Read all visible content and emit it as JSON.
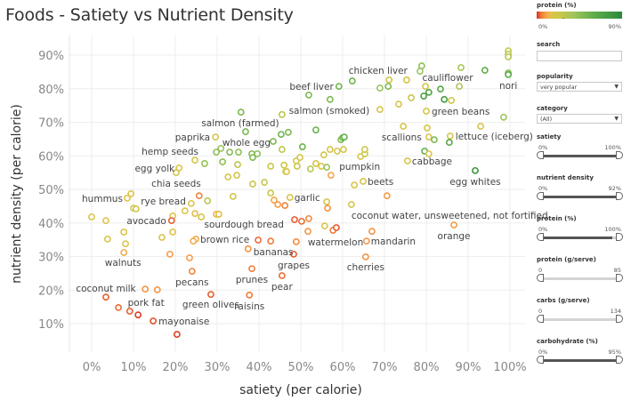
{
  "title": "Foods - Satiety vs Nutrient Density",
  "chart_data": {
    "type": "scatter",
    "title": "Foods - Satiety vs Nutrient Density",
    "xlabel": "satiety (per calorie)",
    "ylabel": "nutrient density (per calorie)",
    "xlim": [
      -5,
      104
    ],
    "ylim": [
      2,
      96
    ],
    "x_ticks": [
      "0%",
      "10%",
      "20%",
      "30%",
      "40%",
      "50%",
      "60%",
      "70%",
      "80%",
      "90%",
      "100%"
    ],
    "y_ticks": [
      "10%",
      "20%",
      "30%",
      "40%",
      "50%",
      "60%",
      "70%",
      "80%",
      "90%"
    ],
    "grid": true,
    "marker": "open circle",
    "color_by": "protein (%)",
    "points": [
      {
        "label": "hummus",
        "x": 8.5,
        "y": 47.4,
        "protein": 16
      },
      {
        "x": 9.4,
        "y": 48.7,
        "protein": 16
      },
      {
        "label": "rye bread",
        "x": 23.8,
        "y": 45.8,
        "protein": 16
      },
      {
        "x": 25.7,
        "y": 48.1,
        "protein": 6
      },
      {
        "x": 27.7,
        "y": 46.6,
        "protein": 28
      },
      {
        "x": 33.8,
        "y": 47.9,
        "protein": 22
      },
      {
        "x": 43.6,
        "y": 46.8,
        "protein": 10
      },
      {
        "x": 44.5,
        "y": 45.5,
        "protein": 9
      },
      {
        "x": 46.2,
        "y": 45.2,
        "protein": 6
      },
      {
        "label": "garlic",
        "x": 47.4,
        "y": 47.6,
        "protein": 16
      },
      {
        "x": 42.8,
        "y": 48.9,
        "protein": 24
      },
      {
        "x": 10,
        "y": 44.4,
        "protein": 20
      },
      {
        "x": 10.6,
        "y": 44.2,
        "protein": 22
      },
      {
        "x": 22.3,
        "y": 43.6,
        "protein": 16
      },
      {
        "x": 24.7,
        "y": 42.8,
        "protein": 14
      },
      {
        "x": 26.2,
        "y": 41.8,
        "protein": 20
      },
      {
        "x": 29.8,
        "y": 42.6,
        "protein": 14
      },
      {
        "x": 30.4,
        "y": 42.6,
        "protein": 14
      },
      {
        "x": 0,
        "y": 41.8,
        "protein": 16
      },
      {
        "x": 3.4,
        "y": 40.7,
        "protein": 16
      },
      {
        "x": 19.4,
        "y": 42.1,
        "protein": 16
      },
      {
        "label": "avocado",
        "x": 19.1,
        "y": 40.7,
        "protein": 3
      },
      {
        "x": 7.7,
        "y": 37.3,
        "protein": 16
      },
      {
        "x": 3.8,
        "y": 35.2,
        "protein": 18
      },
      {
        "x": 8.1,
        "y": 33.8,
        "protein": 16
      },
      {
        "label": "walnuts",
        "x": 7.7,
        "y": 31.2,
        "protein": 11
      },
      {
        "x": 16.8,
        "y": 35.7,
        "protein": 16
      },
      {
        "x": 19.4,
        "y": 37.3,
        "protein": 16
      },
      {
        "label": "brown rice",
        "x": 24.9,
        "y": 35.2,
        "protein": 11
      },
      {
        "x": 24.3,
        "y": 34.6,
        "protein": 11
      },
      {
        "x": 18.7,
        "y": 30.7,
        "protein": 9
      },
      {
        "x": 23.4,
        "y": 29.6,
        "protein": 9
      },
      {
        "label": "pecans",
        "x": 24,
        "y": 25.6,
        "protein": 6
      },
      {
        "x": 39.8,
        "y": 34.9,
        "protein": 4
      },
      {
        "x": 42.8,
        "y": 34.6,
        "protein": 5
      },
      {
        "label": "bananas",
        "x": 37.4,
        "y": 32.3,
        "protein": 8
      },
      {
        "label": "sourdough bread",
        "x": 48.5,
        "y": 41,
        "protein": 3
      },
      {
        "x": 50.2,
        "y": 40.5,
        "protein": 4
      },
      {
        "label": "watermelon",
        "x": 48.9,
        "y": 34.4,
        "protein": 7
      },
      {
        "label": "grapes",
        "x": 48.3,
        "y": 30.7,
        "protein": 3
      },
      {
        "label": "prunes",
        "x": 38.3,
        "y": 26.4,
        "protein": 5
      },
      {
        "label": "pear",
        "x": 45.5,
        "y": 24.3,
        "protein": 4
      },
      {
        "x": 12.8,
        "y": 20.3,
        "protein": 8
      },
      {
        "x": 15.7,
        "y": 20.1,
        "protein": 8
      },
      {
        "label": "coconut milk",
        "x": 3.4,
        "y": 17.9,
        "protein": 3
      },
      {
        "x": 6.4,
        "y": 14.8,
        "protein": 4
      },
      {
        "x": 9.1,
        "y": 13.7,
        "protein": 3
      },
      {
        "label": "pork fat",
        "x": 11.1,
        "y": 12.6,
        "protein": 1
      },
      {
        "label": "mayonaise",
        "x": 14.7,
        "y": 10.8,
        "protein": 2
      },
      {
        "x": 20.4,
        "y": 6.8,
        "protein": 1
      },
      {
        "label": "green olives",
        "x": 28.5,
        "y": 18.7,
        "protein": 3
      },
      {
        "label": "raisins",
        "x": 37.7,
        "y": 18.5,
        "protein": 5
      },
      {
        "x": 35.7,
        "y": 73,
        "protein": 50
      },
      {
        "x": 45.5,
        "y": 72.3,
        "protein": 28
      },
      {
        "label": "salmon (farmed)",
        "x": 36.8,
        "y": 67.2,
        "protein": 50
      },
      {
        "label": "paprika",
        "x": 29.6,
        "y": 65.6,
        "protein": 18
      },
      {
        "x": 45.3,
        "y": 66.4,
        "protein": 55
      },
      {
        "x": 47,
        "y": 67,
        "protein": 50
      },
      {
        "label": "whole egg",
        "x": 43.4,
        "y": 64.3,
        "protein": 50
      },
      {
        "x": 30.9,
        "y": 62.2,
        "protein": 40
      },
      {
        "x": 29.8,
        "y": 61.1,
        "protein": 45
      },
      {
        "x": 33,
        "y": 61.1,
        "protein": 48
      },
      {
        "x": 35.1,
        "y": 61.1,
        "protein": 45
      },
      {
        "x": 38.3,
        "y": 60.6,
        "protein": 48
      },
      {
        "x": 39.6,
        "y": 60.6,
        "protein": 45
      },
      {
        "x": 38.5,
        "y": 59.5,
        "protein": 50
      },
      {
        "x": 45.5,
        "y": 61.9,
        "protein": 28
      },
      {
        "label": "hemp seeds",
        "x": 24.7,
        "y": 58.7,
        "protein": 20
      },
      {
        "x": 27,
        "y": 57.7,
        "protein": 42
      },
      {
        "x": 31.3,
        "y": 58.2,
        "protein": 45
      },
      {
        "x": 34.9,
        "y": 57.4,
        "protein": 28
      },
      {
        "label": "egg yolk",
        "x": 20.9,
        "y": 56.4,
        "protein": 18
      },
      {
        "label": "chia seeds",
        "x": 20.2,
        "y": 55,
        "protein": 20
      },
      {
        "x": 32.6,
        "y": 53.7,
        "protein": 20
      },
      {
        "x": 34.7,
        "y": 54.2,
        "protein": 20
      },
      {
        "x": 38.5,
        "y": 51.6,
        "protein": 26
      },
      {
        "x": 41.3,
        "y": 52.1,
        "protein": 26
      },
      {
        "x": 42.8,
        "y": 56.9,
        "protein": 24
      },
      {
        "x": 46,
        "y": 57.2,
        "protein": 20
      },
      {
        "x": 46.4,
        "y": 55.3,
        "protein": 20
      },
      {
        "x": 48.9,
        "y": 58.5,
        "protein": 20
      },
      {
        "x": 49.8,
        "y": 59.5,
        "protein": 20
      },
      {
        "x": 49.1,
        "y": 56.9,
        "protein": 24
      },
      {
        "x": 99.6,
        "y": 91.3,
        "protein": 28
      },
      {
        "x": 99.6,
        "y": 90.3,
        "protein": 30
      },
      {
        "x": 99.6,
        "y": 89.5,
        "protein": 32
      },
      {
        "x": 99.6,
        "y": 84.7,
        "protein": 45
      },
      {
        "label": "nori",
        "x": 99.6,
        "y": 84.2,
        "protein": 65
      },
      {
        "x": 78.9,
        "y": 86.8,
        "protein": 45
      },
      {
        "x": 78.5,
        "y": 85.2,
        "protein": 40
      },
      {
        "label": "cauliflower",
        "x": 88.3,
        "y": 86.3,
        "protein": 35
      },
      {
        "x": 94,
        "y": 85.5,
        "protein": 60
      },
      {
        "label": "chicken liver",
        "x": 62.3,
        "y": 82.3,
        "protein": 55
      },
      {
        "label": "beef liver",
        "x": 59.1,
        "y": 80.7,
        "protein": 55
      },
      {
        "x": 68.9,
        "y": 80.2,
        "protein": 40
      },
      {
        "x": 70.9,
        "y": 80.7,
        "protein": 50
      },
      {
        "x": 71.1,
        "y": 82.6,
        "protein": 22
      },
      {
        "x": 75.3,
        "y": 82.6,
        "protein": 20
      },
      {
        "x": 79.8,
        "y": 80.7,
        "protein": 22
      },
      {
        "x": 83.4,
        "y": 79.9,
        "protein": 65
      },
      {
        "x": 87.9,
        "y": 80.7,
        "protein": 35
      },
      {
        "x": 79.4,
        "y": 77.8,
        "protein": 70
      },
      {
        "x": 80.6,
        "y": 78.9,
        "protein": 70
      },
      {
        "x": 84.3,
        "y": 76.8,
        "protein": 75
      },
      {
        "x": 86,
        "y": 76.5,
        "protein": 22
      },
      {
        "x": 76.4,
        "y": 77.3,
        "protein": 22
      },
      {
        "x": 51.9,
        "y": 78.1,
        "protein": 50
      },
      {
        "label": "salmon (smoked)",
        "x": 57,
        "y": 76.8,
        "protein": 50
      },
      {
        "x": 68.9,
        "y": 73.8,
        "protein": 20
      },
      {
        "x": 73.4,
        "y": 75.4,
        "protein": 20
      },
      {
        "label": "green beans",
        "x": 80,
        "y": 73.3,
        "protein": 20
      },
      {
        "x": 98.5,
        "y": 71.5,
        "protein": 40
      },
      {
        "x": 93,
        "y": 68.8,
        "protein": 20
      },
      {
        "x": 74.5,
        "y": 68.8,
        "protein": 20
      },
      {
        "x": 80.2,
        "y": 68.3,
        "protein": 20
      },
      {
        "label": "scallions",
        "x": 80.6,
        "y": 65.6,
        "protein": 18
      },
      {
        "x": 81.9,
        "y": 64.8,
        "protein": 50
      },
      {
        "label": "lettuce (iceberg)",
        "x": 85.7,
        "y": 65.9,
        "protein": 20
      },
      {
        "x": 85.5,
        "y": 64,
        "protein": 65
      },
      {
        "x": 53.6,
        "y": 67.7,
        "protein": 55
      },
      {
        "x": 59.6,
        "y": 64.8,
        "protein": 48
      },
      {
        "x": 60,
        "y": 65.4,
        "protein": 55
      },
      {
        "x": 60.4,
        "y": 65.6,
        "protein": 60
      },
      {
        "x": 50.4,
        "y": 62.7,
        "protein": 55
      },
      {
        "x": 57,
        "y": 61.9,
        "protein": 20
      },
      {
        "x": 58.7,
        "y": 61.4,
        "protein": 20
      },
      {
        "x": 60.2,
        "y": 61.9,
        "protein": 20
      },
      {
        "x": 55.5,
        "y": 60.3,
        "protein": 20
      },
      {
        "label": "pumpkin",
        "x": 64.3,
        "y": 59.8,
        "protein": 18
      },
      {
        "x": 65.3,
        "y": 60.6,
        "protein": 25
      },
      {
        "x": 65.3,
        "y": 61.9,
        "protein": 22
      },
      {
        "x": 53.6,
        "y": 57.7,
        "protein": 20
      },
      {
        "x": 54.9,
        "y": 56.9,
        "protein": 16
      },
      {
        "x": 56.2,
        "y": 56.6,
        "protein": 40
      },
      {
        "x": 52.3,
        "y": 56.1,
        "protein": 30
      },
      {
        "x": 57.2,
        "y": 54.2,
        "protein": 10
      },
      {
        "x": 79.6,
        "y": 61.4,
        "protein": 60
      },
      {
        "x": 80.6,
        "y": 60.6,
        "protein": 18
      },
      {
        "label": "cabbage",
        "x": 75.5,
        "y": 58.5,
        "protein": 18
      },
      {
        "label": "egg whites",
        "x": 91.7,
        "y": 55.6,
        "protein": 80
      },
      {
        "label": "beets",
        "x": 64.9,
        "y": 52.4,
        "protein": 18
      },
      {
        "x": 62.8,
        "y": 51.3,
        "protein": 18
      },
      {
        "x": 70.6,
        "y": 48.1,
        "protein": 9
      },
      {
        "x": 46.6,
        "y": 55.3,
        "protein": 18
      },
      {
        "x": 56.2,
        "y": 46.3,
        "protein": 18
      },
      {
        "x": 56.4,
        "y": 44.4,
        "protein": 8
      },
      {
        "label": "coconut water, unsweetened, not fortified",
        "x": 62.1,
        "y": 45.5,
        "protein": 18
      },
      {
        "x": 51.9,
        "y": 41.3,
        "protein": 7
      },
      {
        "x": 55.7,
        "y": 39.1,
        "protein": 18
      },
      {
        "x": 57.7,
        "y": 37.8,
        "protein": 5
      },
      {
        "x": 58.5,
        "y": 38.6,
        "protein": 3
      },
      {
        "x": 51.7,
        "y": 37.5,
        "protein": 8
      },
      {
        "label": "mandarin",
        "x": 65.7,
        "y": 34.6,
        "protein": 8
      },
      {
        "x": 67,
        "y": 37.5,
        "protein": 8
      },
      {
        "label": "cherries",
        "x": 65.5,
        "y": 29.9,
        "protein": 8
      },
      {
        "label": "orange",
        "x": 86.6,
        "y": 39.4,
        "protein": 9
      }
    ]
  },
  "panel": {
    "legend": {
      "title": "protein (%)",
      "min_label": "0%",
      "max_label": "90%",
      "colors": [
        "#d7301f",
        "#f07c3c",
        "#f5a54a",
        "#e0c24a",
        "#c8c84a",
        "#9cc45a",
        "#5fae4a",
        "#2a8a3a"
      ]
    },
    "search": {
      "label": "search",
      "value": ""
    },
    "popularity": {
      "label": "popularity",
      "value": "very popular"
    },
    "category": {
      "label": "category",
      "value": "(All)"
    },
    "sliders": [
      {
        "label": "satiety",
        "min_label": "0%",
        "max_label": "100%",
        "low": 0,
        "high": 1.0,
        "active": true
      },
      {
        "label": "nutrient density",
        "min_label": "0%",
        "max_label": "92%",
        "low": 0,
        "high": 1.0,
        "active": true
      },
      {
        "label": "protein (%)",
        "min_label": "0%",
        "max_label": "100%",
        "low": 0,
        "high": 0.9,
        "active": true
      },
      {
        "label": "protein (g/serve)",
        "min_label": "0",
        "max_label": "85",
        "low": 0,
        "high": 1.0,
        "active": false
      },
      {
        "label": "carbs (g/serve)",
        "min_label": "0",
        "max_label": "134",
        "low": 0,
        "high": 1.0,
        "active": false
      },
      {
        "label": "carbohydrate (%)",
        "min_label": "0%",
        "max_label": "95%",
        "low": 0,
        "high": 1.0,
        "active": true
      }
    ]
  }
}
